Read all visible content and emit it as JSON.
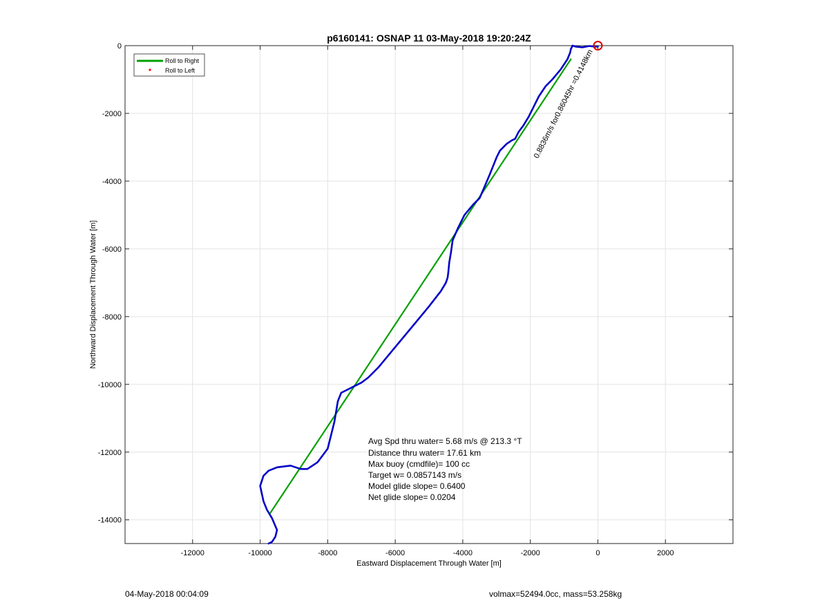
{
  "chart_data": {
    "type": "line",
    "title": "p6160141: OSNAP 11 03-May-2018 19:20:24Z",
    "xlabel": "Eastward Displacement Through Water [m]",
    "ylabel": "Northward Displacement Through Water [m]",
    "xlim": [
      -14000,
      4000
    ],
    "ylim": [
      -14700,
      0
    ],
    "xticks": [
      -12000,
      -10000,
      -8000,
      -6000,
      -4000,
      -2000,
      0,
      2000
    ],
    "yticks": [
      0,
      -2000,
      -4000,
      -6000,
      -8000,
      -10000,
      -12000,
      -14000
    ],
    "grid": true,
    "legend": {
      "placement": "top-left",
      "entries": [
        {
          "label": "Roll to Right",
          "color": "#00a000",
          "style": "line"
        },
        {
          "label": "Roll to Left",
          "color": "#ff0000",
          "style": "dot"
        }
      ]
    },
    "series": [
      {
        "color": "#00a000",
        "x": [
          -800,
          -9700
        ],
        "y": [
          -400,
          -13800
        ]
      },
      {
        "color": "#0000c8",
        "x": [
          -1,
          -100,
          -250,
          -450,
          -650,
          -750,
          -800,
          -820,
          -900,
          -1100,
          -1350,
          -1550,
          -1750,
          -1900,
          -2050,
          -2200,
          -2350,
          -2450,
          -2550,
          -2700,
          -2900,
          -3000,
          -3100,
          -3200,
          -3350,
          -3500,
          -3700,
          -3950,
          -4150,
          -4300,
          -4350,
          -4400,
          -4430,
          -4450,
          -4500,
          -4650,
          -5000,
          -5500,
          -6000,
          -6500,
          -6800,
          -7000,
          -7200,
          -7400,
          -7600,
          -7700,
          -7800,
          -7900,
          -8000,
          -8300,
          -8600,
          -8800,
          -9100,
          -9500,
          -9750,
          -9900,
          -10000,
          -9900,
          -9800,
          -9650,
          -9500,
          -9550,
          -9650,
          -9750
        ],
        "y": [
          -30,
          -30,
          -10,
          -50,
          -30,
          0,
          -100,
          -200,
          -400,
          -700,
          -1000,
          -1200,
          -1500,
          -1800,
          -2100,
          -2350,
          -2550,
          -2750,
          -2800,
          -2900,
          -3100,
          -3300,
          -3550,
          -3800,
          -4150,
          -4500,
          -4700,
          -5000,
          -5400,
          -5750,
          -6100,
          -6400,
          -6700,
          -6850,
          -7000,
          -7250,
          -7700,
          -8300,
          -8900,
          -9500,
          -9800,
          -9950,
          -10050,
          -10150,
          -10250,
          -10500,
          -11100,
          -11500,
          -11900,
          -12300,
          -12500,
          -12500,
          -12400,
          -12450,
          -12550,
          -12700,
          -13000,
          -13450,
          -13700,
          -13950,
          -14300,
          -14500,
          -14650,
          -14700
        ]
      }
    ],
    "markers": [
      {
        "name": "end-circle",
        "x": 0,
        "y": 0,
        "color": "#dd0000"
      }
    ],
    "annotations": {
      "stats": [
        "Avg Spd thru water=  5.68 m/s @ 213.3 °T",
        "Distance thru water= 17.61 km",
        "Max buoy (cmdfile)= 100 cc",
        "Target w= 0.0857143 m/s",
        "Model glide slope= 0.6400",
        "Net glide slope= 0.0204"
      ],
      "segment_label": "0.8836m/s for0.86045hr =0.4148km"
    }
  },
  "footer": {
    "date": "04-May-2018 00:04:09",
    "volmax": "volmax=52494.0cc, mass=53.258kg"
  }
}
